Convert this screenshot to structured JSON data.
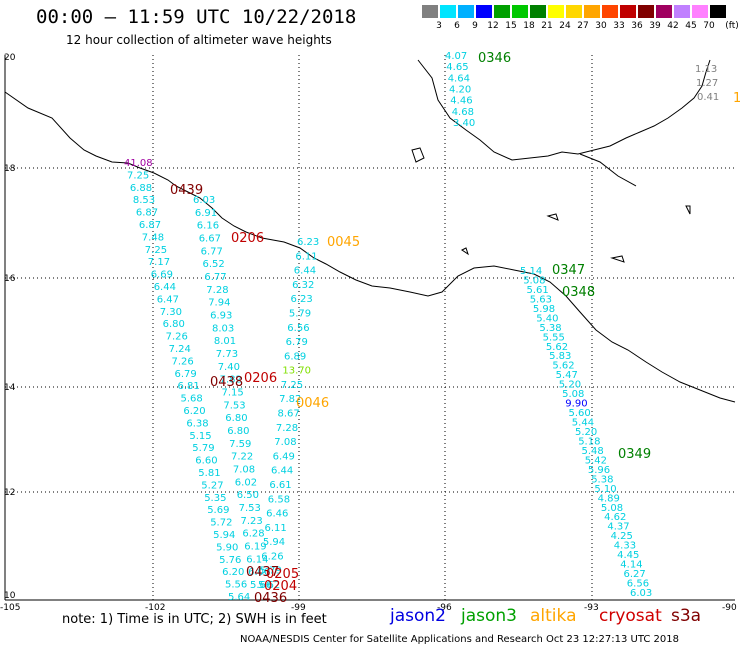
{
  "title": "00:00 — 11:59 UTC 10/22/2018",
  "subtitle": "12 hour collection of altimeter wave heights",
  "colorbar": {
    "unit": "(ft)",
    "ticks": [
      "3",
      "6",
      "9",
      "12",
      "15",
      "18",
      "21",
      "24",
      "27",
      "30",
      "33",
      "36",
      "39",
      "42",
      "45",
      "70"
    ],
    "colors": [
      "#808080",
      "#00e5ff",
      "#00b0ff",
      "#0000ff",
      "#00a000",
      "#00c800",
      "#008000",
      "#ffff00",
      "#ffd700",
      "#ffa500",
      "#ff4500",
      "#c00000",
      "#800000",
      "#a00060",
      "#c080ff",
      "#ff80ff",
      "#000000"
    ]
  },
  "axes": {
    "y_labels": [
      "20",
      "18",
      "16",
      "14",
      "12",
      "10"
    ],
    "x_labels": [
      "-105",
      "-102",
      "-99",
      "-96",
      "-93",
      "-90"
    ]
  },
  "tracks": {
    "t1": [
      {
        "v": "4.07",
        "c": "#00d0e0"
      },
      {
        "v": "4.65",
        "c": "#00d0e0"
      },
      {
        "v": "4.64",
        "c": "#00d0e0"
      },
      {
        "v": "4.20",
        "c": "#00d0e0"
      },
      {
        "v": "4.46",
        "c": "#00d0e0"
      },
      {
        "v": "4.68",
        "c": "#00d0e0"
      },
      {
        "v": "3.40",
        "c": "#00d0e0"
      }
    ],
    "t2": [
      {
        "v": "1.13",
        "c": "#808080"
      },
      {
        "v": "1.27",
        "c": "#808080"
      },
      {
        "v": "0.41",
        "c": "#808080"
      }
    ],
    "t3": [
      {
        "v": "41.08",
        "c": "#a000a0"
      },
      {
        "v": "7.25",
        "c": "#00d0e0"
      },
      {
        "v": "6.88",
        "c": "#00d0e0"
      },
      {
        "v": "8.53",
        "c": "#00d0e0"
      },
      {
        "v": "6.87",
        "c": "#00d0e0"
      },
      {
        "v": "6.87",
        "c": "#00d0e0"
      },
      {
        "v": "7.48",
        "c": "#00d0e0"
      },
      {
        "v": "7.25",
        "c": "#00d0e0"
      },
      {
        "v": "7.17",
        "c": "#00d0e0"
      },
      {
        "v": "6.69",
        "c": "#00d0e0"
      },
      {
        "v": "6.44",
        "c": "#00d0e0"
      },
      {
        "v": "6.47",
        "c": "#00d0e0"
      },
      {
        "v": "7.30",
        "c": "#00d0e0"
      },
      {
        "v": "6.80",
        "c": "#00d0e0"
      },
      {
        "v": "7.26",
        "c": "#00d0e0"
      },
      {
        "v": "7.24",
        "c": "#00d0e0"
      },
      {
        "v": "7.26",
        "c": "#00d0e0"
      },
      {
        "v": "6.79",
        "c": "#00d0e0"
      },
      {
        "v": "6.81",
        "c": "#00d0e0"
      },
      {
        "v": "5.68",
        "c": "#00d0e0"
      },
      {
        "v": "6.20",
        "c": "#00d0e0"
      },
      {
        "v": "6.38",
        "c": "#00d0e0"
      },
      {
        "v": "5.15",
        "c": "#00d0e0"
      },
      {
        "v": "5.79",
        "c": "#00d0e0"
      },
      {
        "v": "6.60",
        "c": "#00d0e0"
      },
      {
        "v": "5.81",
        "c": "#00d0e0"
      },
      {
        "v": "5.27",
        "c": "#00d0e0"
      },
      {
        "v": "5.35",
        "c": "#00d0e0"
      },
      {
        "v": "5.69",
        "c": "#00d0e0"
      },
      {
        "v": "5.72",
        "c": "#00d0e0"
      },
      {
        "v": "5.94",
        "c": "#00d0e0"
      },
      {
        "v": "5.90",
        "c": "#00d0e0"
      },
      {
        "v": "5.76",
        "c": "#00d0e0"
      },
      {
        "v": "6.20",
        "c": "#00d0e0"
      },
      {
        "v": "5.56",
        "c": "#00d0e0"
      },
      {
        "v": "5.64",
        "c": "#00d0e0"
      }
    ],
    "t4": [
      {
        "v": "6.03",
        "c": "#00d0e0"
      },
      {
        "v": "6.91",
        "c": "#00d0e0"
      },
      {
        "v": "6.16",
        "c": "#00d0e0"
      },
      {
        "v": "6.67",
        "c": "#00d0e0"
      },
      {
        "v": "6.77",
        "c": "#00d0e0"
      },
      {
        "v": "6.52",
        "c": "#00d0e0"
      },
      {
        "v": "6.77",
        "c": "#00d0e0"
      },
      {
        "v": "7.28",
        "c": "#00d0e0"
      },
      {
        "v": "7.94",
        "c": "#00d0e0"
      },
      {
        "v": "6.93",
        "c": "#00d0e0"
      },
      {
        "v": "8.03",
        "c": "#00d0e0"
      },
      {
        "v": "8.01",
        "c": "#00d0e0"
      },
      {
        "v": "7.73",
        "c": "#00d0e0"
      },
      {
        "v": "7.40",
        "c": "#00d0e0"
      },
      {
        "v": "7.82",
        "c": "#00d0e0"
      },
      {
        "v": "7.15",
        "c": "#00d0e0"
      },
      {
        "v": "7.53",
        "c": "#00d0e0"
      },
      {
        "v": "6.80",
        "c": "#00d0e0"
      },
      {
        "v": "6.80",
        "c": "#00d0e0"
      },
      {
        "v": "7.59",
        "c": "#00d0e0"
      },
      {
        "v": "7.22",
        "c": "#00d0e0"
      },
      {
        "v": "7.08",
        "c": "#00d0e0"
      },
      {
        "v": "6.02",
        "c": "#00d0e0"
      },
      {
        "v": "6.50",
        "c": "#00d0e0"
      },
      {
        "v": "7.53",
        "c": "#00d0e0"
      },
      {
        "v": "7.23",
        "c": "#00d0e0"
      },
      {
        "v": "6.28",
        "c": "#00d0e0"
      },
      {
        "v": "6.19",
        "c": "#00d0e0"
      },
      {
        "v": "6.14",
        "c": "#00d0e0"
      },
      {
        "v": "6.00",
        "c": "#00d0e0"
      },
      {
        "v": "5.66",
        "c": "#00d0e0"
      }
    ],
    "t5": [
      {
        "v": "6.23",
        "c": "#00d0e0"
      },
      {
        "v": "6.11",
        "c": "#00d0e0"
      },
      {
        "v": "6.44",
        "c": "#00d0e0"
      },
      {
        "v": "6.32",
        "c": "#00d0e0"
      },
      {
        "v": "6.23",
        "c": "#00d0e0"
      },
      {
        "v": "5.79",
        "c": "#00d0e0"
      },
      {
        "v": "6.56",
        "c": "#00d0e0"
      },
      {
        "v": "6.79",
        "c": "#00d0e0"
      },
      {
        "v": "6.89",
        "c": "#00d0e0"
      },
      {
        "v": "13.70",
        "c": "#80e000"
      },
      {
        "v": "7.25",
        "c": "#00d0e0"
      },
      {
        "v": "7.82",
        "c": "#00d0e0"
      },
      {
        "v": "8.67",
        "c": "#00d0e0"
      },
      {
        "v": "7.28",
        "c": "#00d0e0"
      },
      {
        "v": "7.08",
        "c": "#00d0e0"
      },
      {
        "v": "6.49",
        "c": "#00d0e0"
      },
      {
        "v": "6.44",
        "c": "#00d0e0"
      },
      {
        "v": "6.61",
        "c": "#00d0e0"
      },
      {
        "v": "6.58",
        "c": "#00d0e0"
      },
      {
        "v": "6.46",
        "c": "#00d0e0"
      },
      {
        "v": "6.11",
        "c": "#00d0e0"
      },
      {
        "v": "5.94",
        "c": "#00d0e0"
      },
      {
        "v": "6.26",
        "c": "#00d0e0"
      },
      {
        "v": "5.79",
        "c": "#00d0e0"
      },
      {
        "v": "5.62",
        "c": "#00d0e0"
      }
    ],
    "t6": [
      {
        "v": "5.14",
        "c": "#00d0e0"
      },
      {
        "v": "5.08",
        "c": "#00d0e0"
      },
      {
        "v": "5.61",
        "c": "#00d0e0"
      },
      {
        "v": "5.63",
        "c": "#00d0e0"
      },
      {
        "v": "5.98",
        "c": "#00d0e0"
      },
      {
        "v": "5.40",
        "c": "#00d0e0"
      },
      {
        "v": "5.38",
        "c": "#00d0e0"
      },
      {
        "v": "5.55",
        "c": "#00d0e0"
      },
      {
        "v": "5.62",
        "c": "#00d0e0"
      },
      {
        "v": "5.83",
        "c": "#00d0e0"
      },
      {
        "v": "5.62",
        "c": "#00d0e0"
      },
      {
        "v": "5.47",
        "c": "#00d0e0"
      },
      {
        "v": "5.20",
        "c": "#00d0e0"
      },
      {
        "v": "5.08",
        "c": "#00d0e0"
      },
      {
        "v": "9.90",
        "c": "#0000ff"
      },
      {
        "v": "5.60",
        "c": "#00d0e0"
      },
      {
        "v": "5.44",
        "c": "#00d0e0"
      },
      {
        "v": "5.20",
        "c": "#00d0e0"
      },
      {
        "v": "5.18",
        "c": "#00d0e0"
      },
      {
        "v": "5.48",
        "c": "#00d0e0"
      },
      {
        "v": "5.42",
        "c": "#00d0e0"
      },
      {
        "v": "5.96",
        "c": "#00d0e0"
      },
      {
        "v": "5.38",
        "c": "#00d0e0"
      },
      {
        "v": "5.10",
        "c": "#00d0e0"
      },
      {
        "v": "4.89",
        "c": "#00d0e0"
      },
      {
        "v": "5.08",
        "c": "#00d0e0"
      },
      {
        "v": "4.62",
        "c": "#00d0e0"
      },
      {
        "v": "4.37",
        "c": "#00d0e0"
      },
      {
        "v": "4.25",
        "c": "#00d0e0"
      },
      {
        "v": "4.33",
        "c": "#00d0e0"
      },
      {
        "v": "4.45",
        "c": "#00d0e0"
      },
      {
        "v": "4.14",
        "c": "#00d0e0"
      },
      {
        "v": "6.27",
        "c": "#00d0e0"
      },
      {
        "v": "6.56",
        "c": "#00d0e0"
      },
      {
        "v": "6.03",
        "c": "#00d0e0"
      }
    ]
  },
  "pass_times": [
    {
      "t": "0346",
      "c": "#008000"
    },
    {
      "t": "1",
      "c": "#ffa500"
    },
    {
      "t": "0439",
      "c": "#800000"
    },
    {
      "t": "0206",
      "c": "#c00000"
    },
    {
      "t": "0045",
      "c": "#ffa500"
    },
    {
      "t": "0347",
      "c": "#008000"
    },
    {
      "t": "0348",
      "c": "#008000"
    },
    {
      "t": "0438",
      "c": "#800000"
    },
    {
      "t": "0206",
      "c": "#c00000"
    },
    {
      "t": "0046",
      "c": "#ffa500"
    },
    {
      "t": "0349",
      "c": "#008000"
    },
    {
      "t": "0437",
      "c": "#800000"
    },
    {
      "t": "0205",
      "c": "#c00000"
    },
    {
      "t": "0204",
      "c": "#c00000"
    },
    {
      "t": "0436",
      "c": "#800000"
    }
  ],
  "footer": {
    "note": "note: 1) Time is in UTC; 2) SWH is in feet",
    "satellites": [
      {
        "name": "jason2",
        "color": "#0000e0"
      },
      {
        "name": "jason3",
        "color": "#00a000"
      },
      {
        "name": "altika",
        "color": "#ffa500"
      },
      {
        "name": "cryosat",
        "color": "#d00000"
      },
      {
        "name": "s3a",
        "color": "#800000"
      }
    ],
    "credit": "NOAA/NESDIS Center for Satellite Applications and Research     Oct 23 12:27:13 UTC 2018"
  }
}
